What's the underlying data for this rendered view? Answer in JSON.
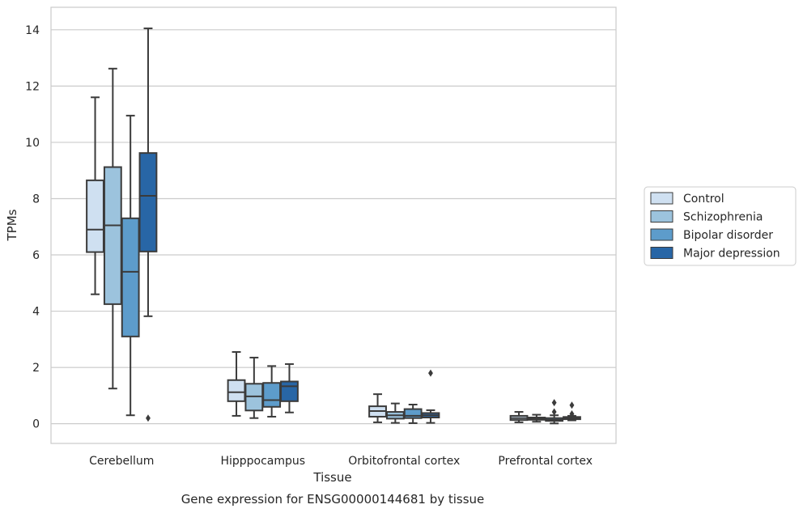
{
  "caption": "Gene expression for ENSG00000144681 by tissue",
  "chart_data": {
    "type": "box",
    "title": "",
    "xlabel": "Tissue",
    "ylabel": "TPMs",
    "categories": [
      "Cerebellum",
      "Hipppocampus",
      "Orbitofrontal cortex",
      "Prefrontal cortex"
    ],
    "yticks": [
      0,
      2,
      4,
      6,
      8,
      10,
      12,
      14
    ],
    "ylim": [
      -0.7,
      14.8
    ],
    "grid": "horizontal",
    "legend_position": "right",
    "series": [
      {
        "name": "Control",
        "color": "#cfe0f1",
        "boxes": [
          {
            "whislo": 4.6,
            "q1": 6.1,
            "med": 6.9,
            "q3": 8.65,
            "whishi": 11.6,
            "fliers": []
          },
          {
            "whislo": 0.28,
            "q1": 0.8,
            "med": 1.12,
            "q3": 1.55,
            "whishi": 2.55,
            "fliers": []
          },
          {
            "whislo": 0.05,
            "q1": 0.25,
            "med": 0.45,
            "q3": 0.62,
            "whishi": 1.05,
            "fliers": []
          },
          {
            "whislo": 0.05,
            "q1": 0.13,
            "med": 0.2,
            "q3": 0.28,
            "whishi": 0.42,
            "fliers": []
          }
        ]
      },
      {
        "name": "Schizophrenia",
        "color": "#9cc3dd",
        "boxes": [
          {
            "whislo": 1.25,
            "q1": 4.25,
            "med": 7.05,
            "q3": 9.12,
            "whishi": 12.62,
            "fliers": []
          },
          {
            "whislo": 0.2,
            "q1": 0.47,
            "med": 0.97,
            "q3": 1.42,
            "whishi": 2.35,
            "fliers": []
          },
          {
            "whislo": 0.03,
            "q1": 0.18,
            "med": 0.3,
            "q3": 0.42,
            "whishi": 0.72,
            "fliers": []
          },
          {
            "whislo": 0.07,
            "q1": 0.14,
            "med": 0.18,
            "q3": 0.22,
            "whishi": 0.32,
            "fliers": []
          }
        ]
      },
      {
        "name": "Bipolar disorder",
        "color": "#5d9ccb",
        "boxes": [
          {
            "whislo": 0.3,
            "q1": 3.1,
            "med": 5.4,
            "q3": 7.3,
            "whishi": 10.95,
            "fliers": []
          },
          {
            "whislo": 0.25,
            "q1": 0.6,
            "med": 0.84,
            "q3": 1.45,
            "whishi": 2.05,
            "fliers": []
          },
          {
            "whislo": 0.02,
            "q1": 0.2,
            "med": 0.28,
            "q3": 0.52,
            "whishi": 0.68,
            "fliers": []
          },
          {
            "whislo": 0.01,
            "q1": 0.1,
            "med": 0.14,
            "q3": 0.2,
            "whishi": 0.3,
            "fliers": [
              0.42,
              0.75
            ]
          }
        ]
      },
      {
        "name": "Major depression",
        "color": "#2866a6",
        "boxes": [
          {
            "whislo": 3.82,
            "q1": 6.12,
            "med": 8.1,
            "q3": 9.62,
            "whishi": 14.05,
            "fliers": [
              0.2
            ]
          },
          {
            "whislo": 0.4,
            "q1": 0.8,
            "med": 1.33,
            "q3": 1.5,
            "whishi": 2.12,
            "fliers": []
          },
          {
            "whislo": 0.03,
            "q1": 0.22,
            "med": 0.3,
            "q3": 0.38,
            "whishi": 0.48,
            "fliers": [
              1.8
            ]
          },
          {
            "whislo": 0.12,
            "q1": 0.16,
            "med": 0.2,
            "q3": 0.24,
            "whishi": 0.28,
            "fliers": [
              0.35,
              0.66
            ]
          }
        ]
      }
    ]
  }
}
